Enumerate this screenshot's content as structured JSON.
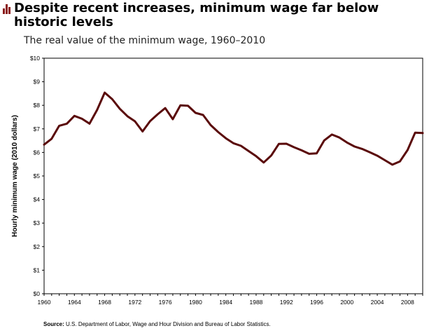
{
  "header": {
    "title": "Despite recent increases, minimum wage far below historic levels",
    "subtitle": "The real value of the minimum wage, 1960–2010"
  },
  "footer": {
    "source_label": "Source:",
    "source_text": "U.S. Department of Labor, Wage and Hour Division and Bureau of Labor Statistics."
  },
  "colors": {
    "line": "#5a0a0a",
    "accent": "#8b1a1a"
  },
  "chart_data": {
    "type": "line",
    "title": "The real value of the minimum wage, 1960–2010",
    "xlabel": "",
    "ylabel": "Hourly minimum wage (2010 dollars)",
    "xlim": [
      1960,
      2010
    ],
    "ylim": [
      0,
      10
    ],
    "grid": false,
    "x_ticks": [
      "1960",
      "1964",
      "1968",
      "1972",
      "1976",
      "1980",
      "1984",
      "1988",
      "1992",
      "1996",
      "2000",
      "2004",
      "2008"
    ],
    "y_ticks": [
      "$0",
      "$1",
      "$2",
      "$3",
      "$4",
      "$5",
      "$6",
      "$7",
      "$8",
      "$9",
      "$10"
    ],
    "series": [
      {
        "x": [
          1960,
          1961,
          1962,
          1963,
          1964,
          1965,
          1966,
          1967,
          1968,
          1969,
          1970,
          1971,
          1972,
          1973,
          1974,
          1975,
          1976,
          1977,
          1978,
          1979,
          1980,
          1981,
          1982,
          1983,
          1984,
          1985,
          1986,
          1987,
          1988,
          1989,
          1990,
          1991,
          1992,
          1993,
          1994,
          1995,
          1996,
          1997,
          1998,
          1999,
          2000,
          2001,
          2002,
          2003,
          2004,
          2005,
          2006,
          2007,
          2008,
          2009,
          2010
        ],
        "y": [
          6.33,
          6.58,
          7.13,
          7.22,
          7.55,
          7.43,
          7.22,
          7.8,
          8.54,
          8.26,
          7.85,
          7.54,
          7.32,
          6.89,
          7.33,
          7.62,
          7.88,
          7.41,
          8.0,
          7.98,
          7.68,
          7.59,
          7.16,
          6.86,
          6.6,
          6.39,
          6.28,
          6.06,
          5.84,
          5.57,
          5.87,
          6.36,
          6.37,
          6.22,
          6.09,
          5.94,
          5.96,
          6.51,
          6.76,
          6.63,
          6.42,
          6.25,
          6.15,
          6.01,
          5.86,
          5.67,
          5.48,
          5.62,
          6.1,
          6.84,
          6.82
        ]
      }
    ]
  }
}
